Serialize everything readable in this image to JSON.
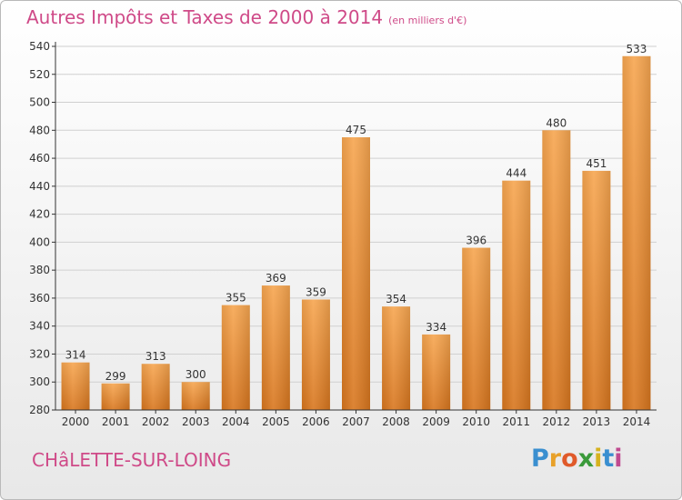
{
  "header": {
    "title": "Autres Impôts et Taxes de 2000 à 2014",
    "subtitle": "(en milliers d'€)"
  },
  "footer": {
    "city": "CHâLETTE-SUR-LOING",
    "logo_letters": [
      "P",
      "r",
      "o",
      "x",
      "i",
      "t",
      "i"
    ],
    "logo_colors": [
      "#3a8fd0",
      "#e8a12a",
      "#e05a2a",
      "#3a9a3a",
      "#d6b21e",
      "#3a8fd0",
      "#c04a90"
    ]
  },
  "colors": {
    "bar_light": "#f7a650",
    "bar_dark": "#d8761e",
    "axis": "#333333",
    "grid": "#d0d0d0"
  },
  "chart_data": {
    "type": "bar",
    "categories": [
      "2000",
      "2001",
      "2002",
      "2003",
      "2004",
      "2005",
      "2006",
      "2007",
      "2008",
      "2009",
      "2010",
      "2011",
      "2012",
      "2013",
      "2014"
    ],
    "values": [
      314,
      299,
      313,
      300,
      355,
      369,
      359,
      475,
      354,
      334,
      396,
      444,
      480,
      451,
      533
    ],
    "ylim": [
      280,
      540
    ],
    "yticks": [
      280,
      300,
      320,
      340,
      360,
      380,
      400,
      420,
      440,
      460,
      480,
      500,
      520,
      540
    ],
    "grid": true
  }
}
